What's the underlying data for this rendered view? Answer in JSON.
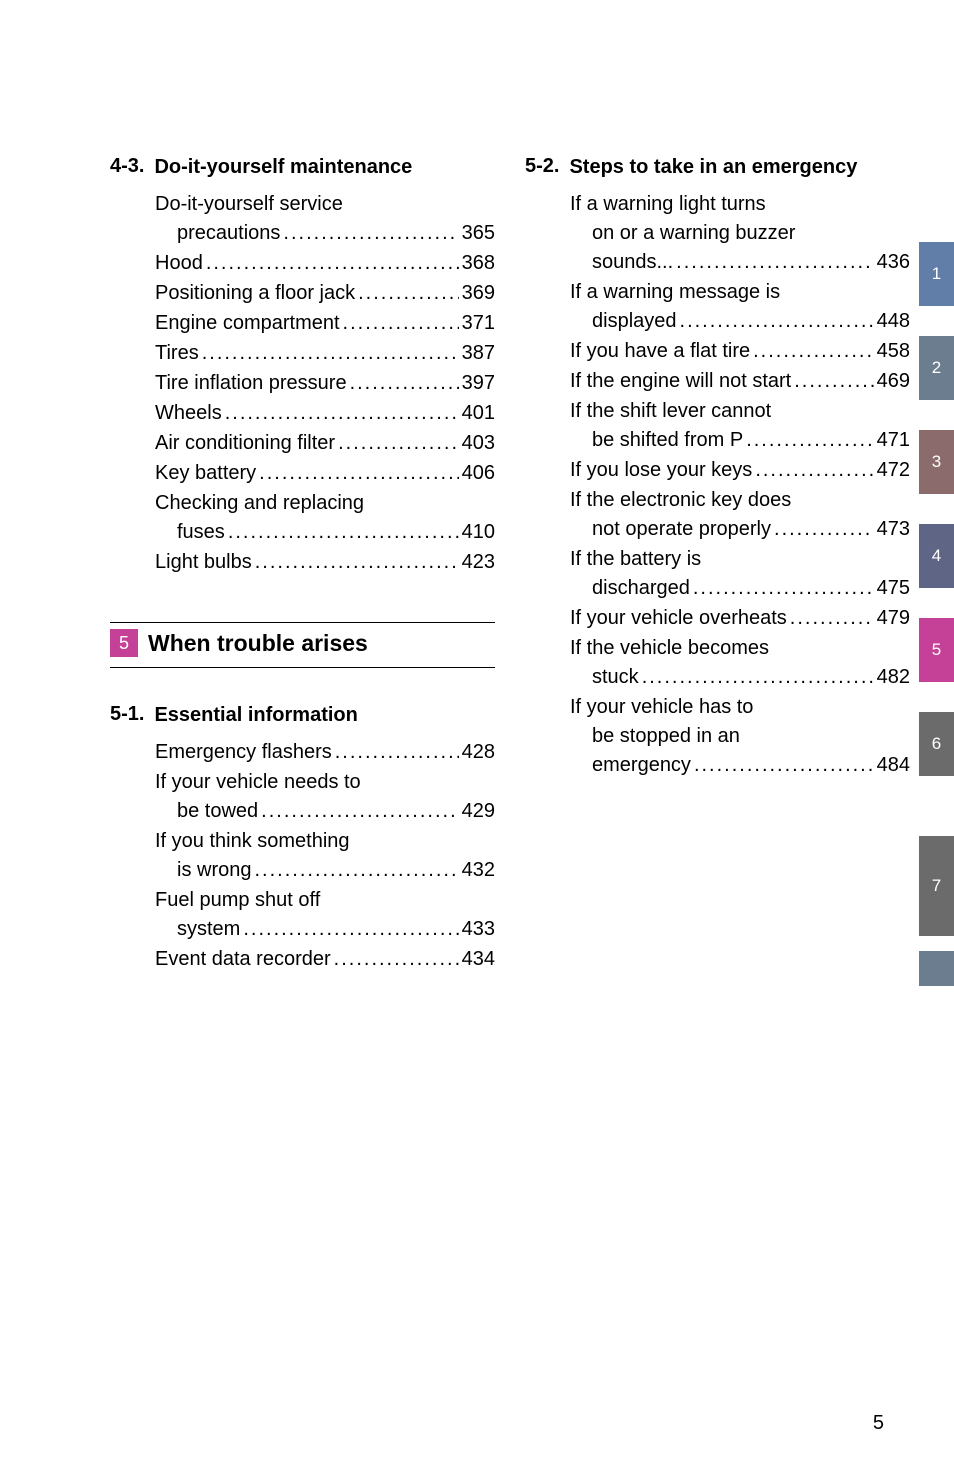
{
  "left": {
    "sections": [
      {
        "num": "4-3.",
        "title": "Do-it-yourself maintenance",
        "items": [
          {
            "lines": [
              "Do-it-yourself service"
            ],
            "last": "precautions",
            "page": "365",
            "indent": true
          },
          {
            "lines": [],
            "last": "Hood",
            "page": "368",
            "indent": false
          },
          {
            "lines": [],
            "last": "Positioning a floor jack",
            "page": "369",
            "indent": false
          },
          {
            "lines": [],
            "last": "Engine compartment",
            "page": "371",
            "indent": false
          },
          {
            "lines": [],
            "last": "Tires",
            "page": "387",
            "indent": false
          },
          {
            "lines": [],
            "last": "Tire inflation pressure",
            "page": "397",
            "indent": false
          },
          {
            "lines": [],
            "last": "Wheels",
            "page": "401",
            "indent": false
          },
          {
            "lines": [],
            "last": "Air conditioning filter",
            "page": "403",
            "indent": false
          },
          {
            "lines": [],
            "last": "Key battery",
            "page": "406",
            "indent": false
          },
          {
            "lines": [
              "Checking and replacing"
            ],
            "last": "fuses",
            "page": "410",
            "indent": true
          },
          {
            "lines": [],
            "last": "Light bulbs",
            "page": "423",
            "indent": false
          }
        ]
      }
    ],
    "chapter": {
      "badge": "5",
      "title": "When trouble arises"
    },
    "sections2": [
      {
        "num": "5-1.",
        "title": "Essential information",
        "items": [
          {
            "lines": [],
            "last": "Emergency flashers",
            "page": "428",
            "indent": false
          },
          {
            "lines": [
              "If your vehicle needs to"
            ],
            "last": "be towed",
            "page": "429",
            "indent": true
          },
          {
            "lines": [
              "If you think something"
            ],
            "last": "is wrong",
            "page": "432",
            "indent": true
          },
          {
            "lines": [
              "Fuel pump shut off"
            ],
            "last": "system",
            "page": "433",
            "indent": true
          },
          {
            "lines": [],
            "last": "Event data recorder",
            "page": "434",
            "indent": false
          }
        ]
      }
    ]
  },
  "right": {
    "sections": [
      {
        "num": "5-2.",
        "title": "Steps to take in an emergency",
        "items": [
          {
            "lines": [
              "If a warning light turns",
              "on or a warning buzzer"
            ],
            "last": "sounds...",
            "page": "436",
            "indent": true
          },
          {
            "lines": [
              "If a warning message is"
            ],
            "last": "displayed",
            "page": "448",
            "indent": true
          },
          {
            "lines": [],
            "last": "If you have a flat tire",
            "page": "458",
            "indent": false
          },
          {
            "lines": [],
            "last": "If the engine will not start",
            "page": "469",
            "indent": false
          },
          {
            "lines": [
              "If the shift lever cannot"
            ],
            "last": "be shifted from P",
            "page": "471",
            "indent": true
          },
          {
            "lines": [],
            "last": "If you lose your keys",
            "page": "472",
            "indent": false
          },
          {
            "lines": [
              "If the electronic key does"
            ],
            "last": "not operate properly",
            "page": "473",
            "indent": true
          },
          {
            "lines": [
              "If the battery is"
            ],
            "last": "discharged",
            "page": "475",
            "indent": true
          },
          {
            "lines": [],
            "last": "If your vehicle overheats",
            "page": "479",
            "indent": false
          },
          {
            "lines": [
              "If the vehicle becomes"
            ],
            "last": "stuck",
            "page": "482",
            "indent": true
          },
          {
            "lines": [
              "If your vehicle has to",
              "be stopped in an"
            ],
            "last": "emergency",
            "page": "484",
            "indent": true
          }
        ]
      }
    ]
  },
  "tabs": [
    "1",
    "2",
    "3",
    "4",
    "5",
    "6",
    "7",
    ""
  ],
  "pageNumber": "5",
  "colors": {
    "accent": "#c54197",
    "tab1": "#607ea8",
    "tab2": "#6b7d8f",
    "tab3": "#8b6b6b",
    "tab4": "#5f6585",
    "tab5": "#c54197",
    "tab6": "#6b6b6b",
    "tab7": "#6b6b6b",
    "tab8": "#6b7d8f",
    "text": "#000000",
    "background": "#ffffff"
  },
  "typography": {
    "body_fontsize": 20,
    "section_title_fontsize": 20,
    "section_title_weight": "bold",
    "chapter_title_fontsize": 23,
    "chapter_title_weight": "bold",
    "tab_fontsize": 17
  }
}
